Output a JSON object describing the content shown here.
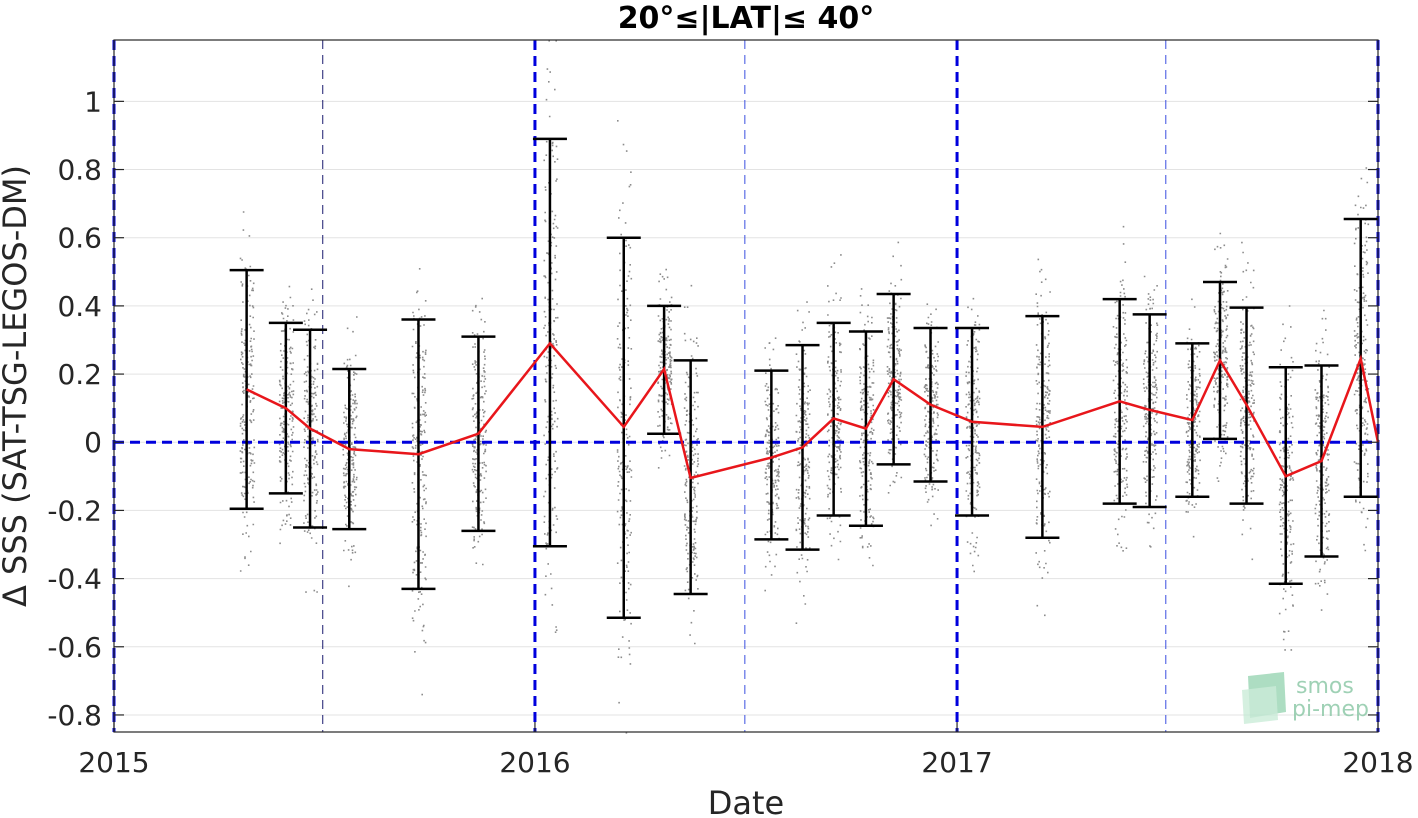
{
  "chart_data": {
    "type": "scatter",
    "title": "20°≤|LAT|≤ 40°",
    "xlabel": "Date",
    "ylabel": "Δ SSS (SAT-TSG-LEGOS-DM)",
    "xlim": [
      "2015-01-01",
      "2018-01-01"
    ],
    "ylim": [
      -0.85,
      1.18
    ],
    "x_ticks": [
      "2015",
      "2016",
      "2017",
      "2018"
    ],
    "y_ticks": [
      1,
      0.8,
      0.6,
      0.4,
      0.2,
      0,
      -0.2,
      -0.4,
      -0.6,
      -0.8
    ],
    "y_tick_labels": [
      "1",
      "0.8",
      "0.6",
      "0.4",
      "0.2",
      "0",
      "-0.2",
      "-0.4",
      "-0.6",
      "-0.8"
    ],
    "grid": "horizontal",
    "zero_line": {
      "y": 0,
      "color": "#0000dd",
      "style": "dashed"
    },
    "year_lines": [
      "2015-01-01",
      "2016-01-01",
      "2017-01-01",
      "2018-01-01"
    ],
    "half_year_lines": [
      "2015-07-01",
      "2016-07-01",
      "2017-07-01"
    ],
    "mean_line_color": "#e8161b",
    "errorbar_color": "#000000",
    "scatter_color": "#8c8c8c",
    "points": [
      {
        "x": "2015-04-26",
        "mean": 0.155,
        "low": -0.195,
        "high": 0.505
      },
      {
        "x": "2015-05-30",
        "mean": 0.1,
        "low": -0.15,
        "high": 0.35
      },
      {
        "x": "2015-06-20",
        "mean": 0.04,
        "low": -0.25,
        "high": 0.33
      },
      {
        "x": "2015-07-24",
        "mean": -0.02,
        "low": -0.255,
        "high": 0.215
      },
      {
        "x": "2015-09-22",
        "mean": -0.035,
        "low": -0.43,
        "high": 0.36
      },
      {
        "x": "2015-11-13",
        "mean": 0.025,
        "low": -0.26,
        "high": 0.31
      },
      {
        "x": "2016-01-14",
        "mean": 0.29,
        "low": -0.305,
        "high": 0.89
      },
      {
        "x": "2016-03-18",
        "mean": 0.045,
        "low": -0.515,
        "high": 0.6
      },
      {
        "x": "2016-04-22",
        "mean": 0.215,
        "low": 0.025,
        "high": 0.4
      },
      {
        "x": "2016-05-15",
        "mean": -0.105,
        "low": -0.445,
        "high": 0.24
      },
      {
        "x": "2016-07-24",
        "mean": -0.045,
        "low": -0.285,
        "high": 0.21
      },
      {
        "x": "2016-08-20",
        "mean": -0.015,
        "low": -0.315,
        "high": 0.285
      },
      {
        "x": "2016-09-16",
        "mean": 0.07,
        "low": -0.215,
        "high": 0.35
      },
      {
        "x": "2016-10-14",
        "mean": 0.04,
        "low": -0.245,
        "high": 0.325
      },
      {
        "x": "2016-11-07",
        "mean": 0.185,
        "low": -0.065,
        "high": 0.435
      },
      {
        "x": "2016-12-09",
        "mean": 0.11,
        "low": -0.115,
        "high": 0.335
      },
      {
        "x": "2017-01-14",
        "mean": 0.06,
        "low": -0.215,
        "high": 0.335
      },
      {
        "x": "2017-03-16",
        "mean": 0.045,
        "low": -0.28,
        "high": 0.37
      },
      {
        "x": "2017-05-22",
        "mean": 0.12,
        "low": -0.18,
        "high": 0.42
      },
      {
        "x": "2017-06-17",
        "mean": 0.095,
        "low": -0.19,
        "high": 0.375
      },
      {
        "x": "2017-07-24",
        "mean": 0.065,
        "low": -0.16,
        "high": 0.29
      },
      {
        "x": "2017-08-17",
        "mean": 0.24,
        "low": 0.01,
        "high": 0.47
      },
      {
        "x": "2017-09-09",
        "mean": 0.11,
        "low": -0.18,
        "high": 0.395
      },
      {
        "x": "2017-10-13",
        "mean": -0.1,
        "low": -0.415,
        "high": 0.22
      },
      {
        "x": "2017-11-13",
        "mean": -0.055,
        "low": -0.335,
        "high": 0.225
      },
      {
        "x": "2017-12-17",
        "mean": 0.245,
        "low": -0.16,
        "high": 0.655
      },
      {
        "x": "2018-01-01",
        "mean": 0.0
      }
    ]
  },
  "logo": {
    "line1": "smos",
    "line2": "pi-mep"
  }
}
